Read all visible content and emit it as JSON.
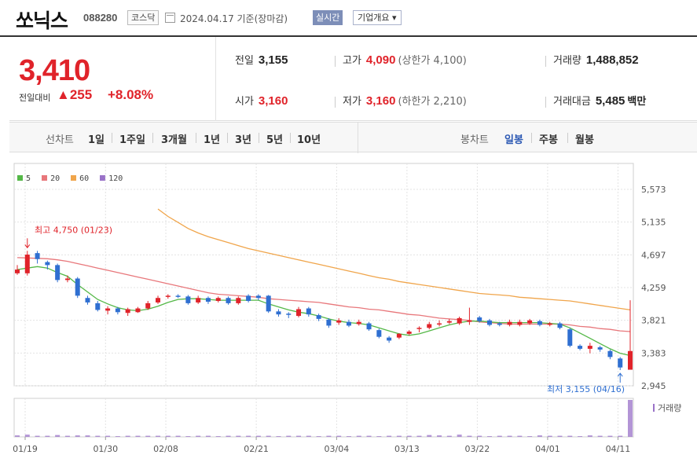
{
  "header": {
    "name": "쏘닉스",
    "code": "088280",
    "market": "코스닥",
    "date": "2024.04.17 기준(장마감)",
    "realtime": "실시간",
    "company": "기업개요 ▾"
  },
  "quote": {
    "price": "3,410",
    "change_label": "전일대비",
    "change": "▲255",
    "change_pct": "+8.08%",
    "prev_close_label": "전일",
    "prev_close": "3,155",
    "high_label": "고가",
    "high": "4,090",
    "upper_limit": "(상한가 4,100)",
    "volume_label": "거래량",
    "volume": "1,488,852",
    "open_label": "시가",
    "open": "3,160",
    "low_label": "저가",
    "low": "3,160",
    "lower_limit": "(하한가 2,210)",
    "value_label": "거래대금",
    "value": "5,485",
    "value_unit": "백만"
  },
  "periods": {
    "label": "선차트",
    "options": [
      "1일",
      "1주일",
      "3개월",
      "1년",
      "3년",
      "5년",
      "10년"
    ],
    "candle_label": "봉차트",
    "candle_options": [
      "일봉",
      "주봉",
      "월봉"
    ],
    "selected_candle": "일봉"
  },
  "colors": {
    "up": "#e0232a",
    "down": "#2f6fd1",
    "ma5": "#54b847",
    "ma20": "#e8777b",
    "ma60": "#f0a54b",
    "ma120": "#9a72c8",
    "volume": "#9a72c8"
  },
  "chart_data": {
    "type": "candlestick",
    "legend": [
      "5",
      "20",
      "60",
      "120"
    ],
    "y_ticks": [
      "5,573",
      "5,135",
      "4,697",
      "4,259",
      "3,821",
      "3,383",
      "2,945"
    ],
    "ylim": [
      2945,
      5573
    ],
    "x_ticks": [
      "01/19",
      "01/30",
      "02/08",
      "02/21",
      "03/04",
      "03/13",
      "03/22",
      "04/01",
      "04/11"
    ],
    "annotations": {
      "high": "최고 4,750 (01/23)",
      "low": "최저 3,155 (04/16)"
    },
    "volume_label": "거래량",
    "candles": [
      {
        "o": 4450,
        "c": 4500,
        "h": 4560,
        "l": 4430
      },
      {
        "o": 4450,
        "c": 4700,
        "h": 4750,
        "l": 4420
      },
      {
        "o": 4720,
        "c": 4640,
        "h": 4750,
        "l": 4580
      },
      {
        "o": 4600,
        "c": 4560,
        "h": 4620,
        "l": 4500
      },
      {
        "o": 4560,
        "c": 4360,
        "h": 4580,
        "l": 4330
      },
      {
        "o": 4360,
        "c": 4380,
        "h": 4420,
        "l": 4330
      },
      {
        "o": 4380,
        "c": 4150,
        "h": 4400,
        "l": 4120
      },
      {
        "o": 4120,
        "c": 4060,
        "h": 4150,
        "l": 4030
      },
      {
        "o": 4050,
        "c": 3960,
        "h": 4080,
        "l": 3940
      },
      {
        "o": 3950,
        "c": 3980,
        "h": 4010,
        "l": 3900
      },
      {
        "o": 3980,
        "c": 3930,
        "h": 4000,
        "l": 3900
      },
      {
        "o": 3920,
        "c": 3970,
        "h": 3990,
        "l": 3880
      },
      {
        "o": 3930,
        "c": 3980,
        "h": 4000,
        "l": 3920
      },
      {
        "o": 3980,
        "c": 4050,
        "h": 4080,
        "l": 3960
      },
      {
        "o": 4060,
        "c": 4120,
        "h": 4150,
        "l": 4040
      },
      {
        "o": 4140,
        "c": 4150,
        "h": 4170,
        "l": 4110
      },
      {
        "o": 4150,
        "c": 4140,
        "h": 4170,
        "l": 4120
      },
      {
        "o": 4140,
        "c": 4050,
        "h": 4160,
        "l": 4030
      },
      {
        "o": 4060,
        "c": 4120,
        "h": 4150,
        "l": 4040
      },
      {
        "o": 4120,
        "c": 4070,
        "h": 4140,
        "l": 4040
      },
      {
        "o": 4080,
        "c": 4120,
        "h": 4140,
        "l": 4060
      },
      {
        "o": 4120,
        "c": 4050,
        "h": 4140,
        "l": 4030
      },
      {
        "o": 4050,
        "c": 4120,
        "h": 4140,
        "l": 4030
      },
      {
        "o": 4150,
        "c": 4080,
        "h": 4170,
        "l": 4060
      },
      {
        "o": 4150,
        "c": 4120,
        "h": 4170,
        "l": 4090
      },
      {
        "o": 4150,
        "c": 3940,
        "h": 4160,
        "l": 3920
      },
      {
        "o": 3940,
        "c": 3900,
        "h": 3970,
        "l": 3870
      },
      {
        "o": 3910,
        "c": 3900,
        "h": 3930,
        "l": 3850
      },
      {
        "o": 3880,
        "c": 3970,
        "h": 4000,
        "l": 3860
      },
      {
        "o": 3980,
        "c": 3900,
        "h": 4000,
        "l": 3870
      },
      {
        "o": 3890,
        "c": 3840,
        "h": 3910,
        "l": 3810
      },
      {
        "o": 3830,
        "c": 3750,
        "h": 3850,
        "l": 3720
      },
      {
        "o": 3790,
        "c": 3820,
        "h": 3850,
        "l": 3760
      },
      {
        "o": 3800,
        "c": 3750,
        "h": 3830,
        "l": 3730
      },
      {
        "o": 3770,
        "c": 3800,
        "h": 3830,
        "l": 3750
      },
      {
        "o": 3780,
        "c": 3700,
        "h": 3800,
        "l": 3680
      },
      {
        "o": 3690,
        "c": 3600,
        "h": 3710,
        "l": 3580
      },
      {
        "o": 3590,
        "c": 3550,
        "h": 3610,
        "l": 3520
      },
      {
        "o": 3590,
        "c": 3640,
        "h": 3650,
        "l": 3570
      },
      {
        "o": 3640,
        "c": 3670,
        "h": 3690,
        "l": 3620
      },
      {
        "o": 3710,
        "c": 3720,
        "h": 3740,
        "l": 3660
      },
      {
        "o": 3720,
        "c": 3770,
        "h": 3800,
        "l": 3700
      },
      {
        "o": 3780,
        "c": 3780,
        "h": 3820,
        "l": 3740
      },
      {
        "o": 3790,
        "c": 3810,
        "h": 3840,
        "l": 3770
      },
      {
        "o": 3780,
        "c": 3850,
        "h": 3870,
        "l": 3760
      },
      {
        "o": 3800,
        "c": 3820,
        "h": 3990,
        "l": 3760
      },
      {
        "o": 3860,
        "c": 3810,
        "h": 3880,
        "l": 3790
      },
      {
        "o": 3820,
        "c": 3760,
        "h": 3840,
        "l": 3740
      },
      {
        "o": 3780,
        "c": 3760,
        "h": 3800,
        "l": 3740
      },
      {
        "o": 3760,
        "c": 3800,
        "h": 3830,
        "l": 3740
      },
      {
        "o": 3760,
        "c": 3800,
        "h": 3830,
        "l": 3740
      },
      {
        "o": 3780,
        "c": 3820,
        "h": 3840,
        "l": 3760
      },
      {
        "o": 3810,
        "c": 3760,
        "h": 3830,
        "l": 3740
      },
      {
        "o": 3760,
        "c": 3780,
        "h": 3800,
        "l": 3740
      },
      {
        "o": 3780,
        "c": 3720,
        "h": 3800,
        "l": 3700
      },
      {
        "o": 3700,
        "c": 3480,
        "h": 3720,
        "l": 3460
      },
      {
        "o": 3480,
        "c": 3440,
        "h": 3500,
        "l": 3420
      },
      {
        "o": 3440,
        "c": 3480,
        "h": 3520,
        "l": 3380
      },
      {
        "o": 3460,
        "c": 3430,
        "h": 3480,
        "l": 3400
      },
      {
        "o": 3410,
        "c": 3330,
        "h": 3430,
        "l": 3300
      },
      {
        "o": 3310,
        "c": 3190,
        "h": 3330,
        "l": 3155
      },
      {
        "o": 3160,
        "c": 3410,
        "h": 4090,
        "l": 3160
      }
    ],
    "ma5": [
      4500,
      4520,
      4540,
      4520,
      4460,
      4410,
      4300,
      4200,
      4100,
      4040,
      3990,
      3960,
      3950,
      3970,
      4010,
      4060,
      4100,
      4110,
      4110,
      4100,
      4090,
      4090,
      4090,
      4090,
      4090,
      4040,
      4000,
      3960,
      3930,
      3910,
      3880,
      3840,
      3810,
      3790,
      3780,
      3760,
      3720,
      3680,
      3640,
      3620,
      3640,
      3680,
      3720,
      3760,
      3790,
      3810,
      3810,
      3800,
      3790,
      3790,
      3790,
      3790,
      3790,
      3780,
      3770,
      3720,
      3650,
      3580,
      3510,
      3440,
      3380,
      3350
    ],
    "ma20": [
      4660,
      4655,
      4650,
      4645,
      4630,
      4610,
      4580,
      4550,
      4520,
      4490,
      4460,
      4430,
      4400,
      4370,
      4340,
      4310,
      4280,
      4250,
      4220,
      4190,
      4170,
      4160,
      4150,
      4140,
      4130,
      4110,
      4100,
      4090,
      4080,
      4070,
      4060,
      4040,
      4020,
      4000,
      3990,
      3970,
      3960,
      3940,
      3920,
      3900,
      3890,
      3870,
      3850,
      3840,
      3830,
      3820,
      3800,
      3790,
      3780,
      3770,
      3770,
      3770,
      3770,
      3770,
      3770,
      3760,
      3740,
      3730,
      3710,
      3700,
      3680,
      3670
    ],
    "ma60_start_index": 14,
    "ma60": [
      5310,
      5210,
      5130,
      5050,
      4990,
      4940,
      4900,
      4860,
      4820,
      4780,
      4750,
      4720,
      4690,
      4660,
      4630,
      4600,
      4570,
      4540,
      4510,
      4480,
      4450,
      4420,
      4390,
      4370,
      4340,
      4320,
      4300,
      4280,
      4260,
      4240,
      4220,
      4200,
      4180,
      4170,
      4160,
      4150,
      4130,
      4120,
      4110,
      4100,
      4090,
      4080,
      4060,
      4040,
      4020,
      4000,
      3980,
      3960
    ],
    "volumes": [
      4,
      6,
      3,
      3,
      5,
      3,
      4,
      4,
      3,
      3,
      2,
      3,
      3,
      3,
      3,
      3,
      3,
      2,
      3,
      3,
      2,
      3,
      3,
      3,
      3,
      3,
      2,
      3,
      3,
      3,
      2,
      3,
      3,
      2,
      3,
      3,
      2,
      3,
      3,
      3,
      3,
      5,
      4,
      3,
      6,
      3,
      3,
      2,
      3,
      3,
      3,
      2,
      4,
      3,
      3,
      3,
      2,
      4,
      3,
      3,
      3,
      100
    ]
  }
}
